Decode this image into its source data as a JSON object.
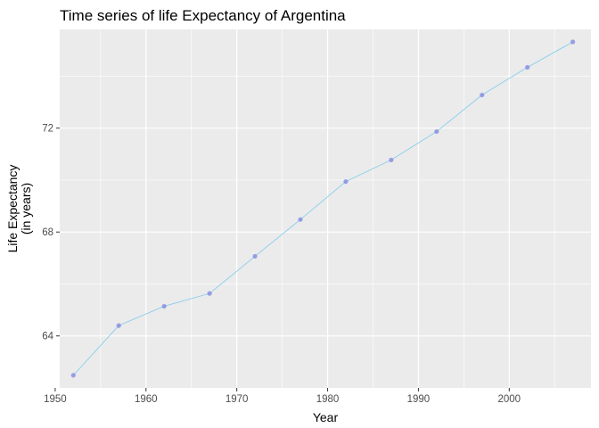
{
  "chart_data": {
    "type": "line",
    "title": "Time series of life Expectancy of Argentina",
    "xlabel": "Year",
    "ylabel_lines": [
      "Life Expectancy",
      "(in years)"
    ],
    "xlim": [
      1950.5,
      2009
    ],
    "ylim": [
      62.0,
      75.8
    ],
    "x_ticks": [
      1950,
      1960,
      1970,
      1980,
      1990,
      2000
    ],
    "y_ticks": [
      64,
      68,
      72
    ],
    "grid": true,
    "panel_background": "#ebebeb",
    "grid_color": "#ffffff",
    "line_color": "#87ceeb",
    "point_color": "#7b7fe0",
    "series": [
      {
        "x": [
          1952,
          1957,
          1962,
          1967,
          1972,
          1977,
          1982,
          1987,
          1992,
          1997,
          2002,
          2007
        ],
        "values": [
          62.485,
          64.399,
          65.142,
          65.634,
          67.065,
          68.481,
          69.942,
          70.774,
          71.868,
          73.275,
          74.34,
          75.32
        ]
      }
    ]
  }
}
